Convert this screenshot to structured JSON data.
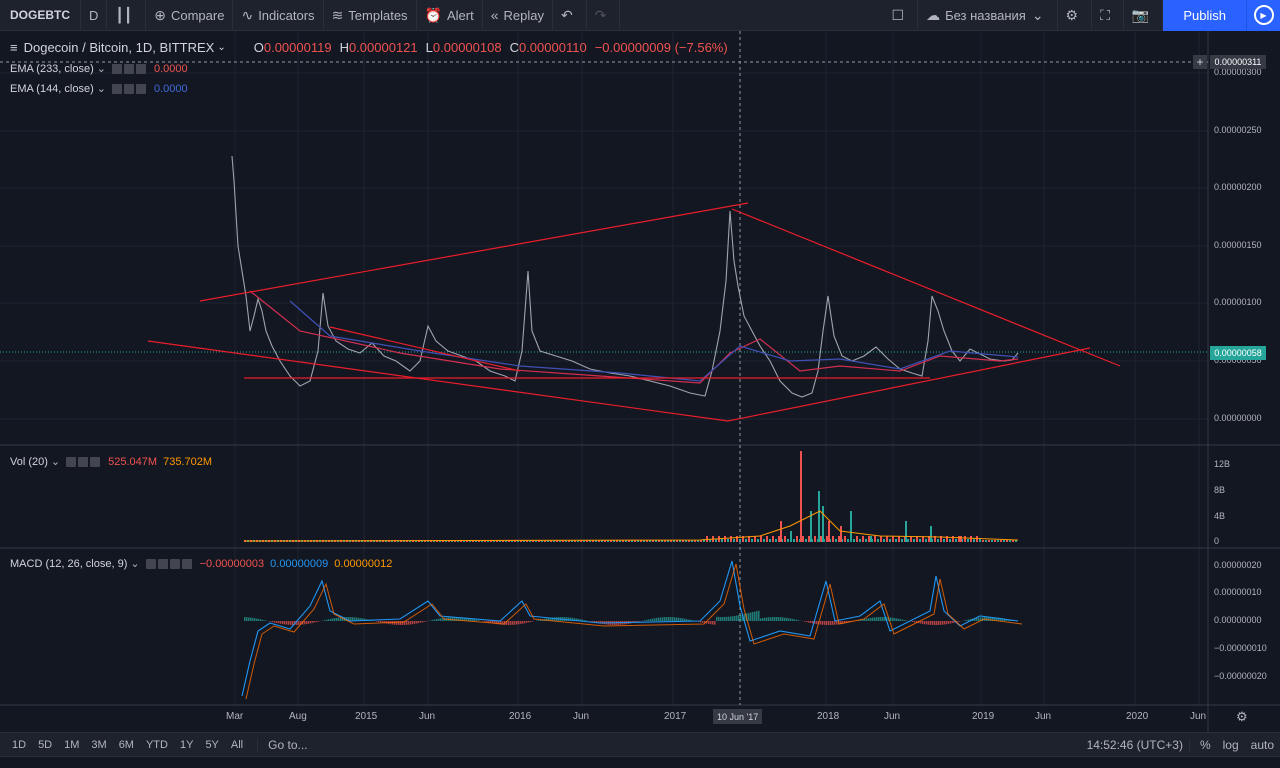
{
  "toolbar": {
    "symbol": "DOGEBTC",
    "interval": "D",
    "compare": "Compare",
    "indicators": "Indicators",
    "templates": "Templates",
    "alert": "Alert",
    "replay": "Replay",
    "layout_name": "Без названия",
    "publish": "Publish"
  },
  "main": {
    "title": "Dogecoin / Bitcoin, 1D, BITTREX",
    "o_label": "O",
    "o": "0.00000119",
    "h_label": "H",
    "h": "0.00000121",
    "l_label": "L",
    "l": "0.00000108",
    "c_label": "C",
    "c": "0.00000110",
    "change": "−0.00000009 (−7.56%)",
    "ema233_title": "EMA (233, close)",
    "ema233_value": "0.0000",
    "ema144_title": "EMA (144, close)",
    "ema144_value": "0.0000",
    "crosshair_price": "0.00000311",
    "last_price": "0.00000058",
    "price_ticks": [
      "0.00000300",
      "0.00000250",
      "0.00000200",
      "0.00000150",
      "0.00000100",
      "0.00000050",
      "0.00000000"
    ]
  },
  "volume": {
    "title": "Vol (20)",
    "v1": "525.047M",
    "v2": "735.702M",
    "ticks": [
      "12B",
      "8B",
      "4B",
      "0"
    ]
  },
  "macd": {
    "title": "MACD (12, 26, close, 9)",
    "v1": "−0.00000003",
    "v2": "0.00000009",
    "v3": "0.00000012",
    "ticks": [
      "0.00000020",
      "0.00000010",
      "0.00000000",
      "−0.00000010",
      "−0.00000020"
    ]
  },
  "time_axis": {
    "labels": [
      "Mar",
      "Aug",
      "2015",
      "Jun",
      "2016",
      "Jun",
      "2017",
      "2018",
      "Jun",
      "2019",
      "Jun",
      "2020",
      "Jun"
    ],
    "crosshair_date": "10 Jun '17"
  },
  "bottom": {
    "ranges": [
      "1D",
      "5D",
      "1M",
      "3M",
      "6M",
      "YTD",
      "1Y",
      "5Y",
      "All"
    ],
    "goto": "Go to...",
    "time": "14:52:46 (UTC+3)",
    "percent": "%",
    "log": "log",
    "auto": "auto"
  },
  "colors": {
    "bg": "#131722",
    "up": "#26a69a",
    "down": "#ef5350",
    "trend": "#e91e2a",
    "ema_red": "#d32f4f",
    "ema_blue": "#3f51b5",
    "accent": "#2962ff"
  }
}
